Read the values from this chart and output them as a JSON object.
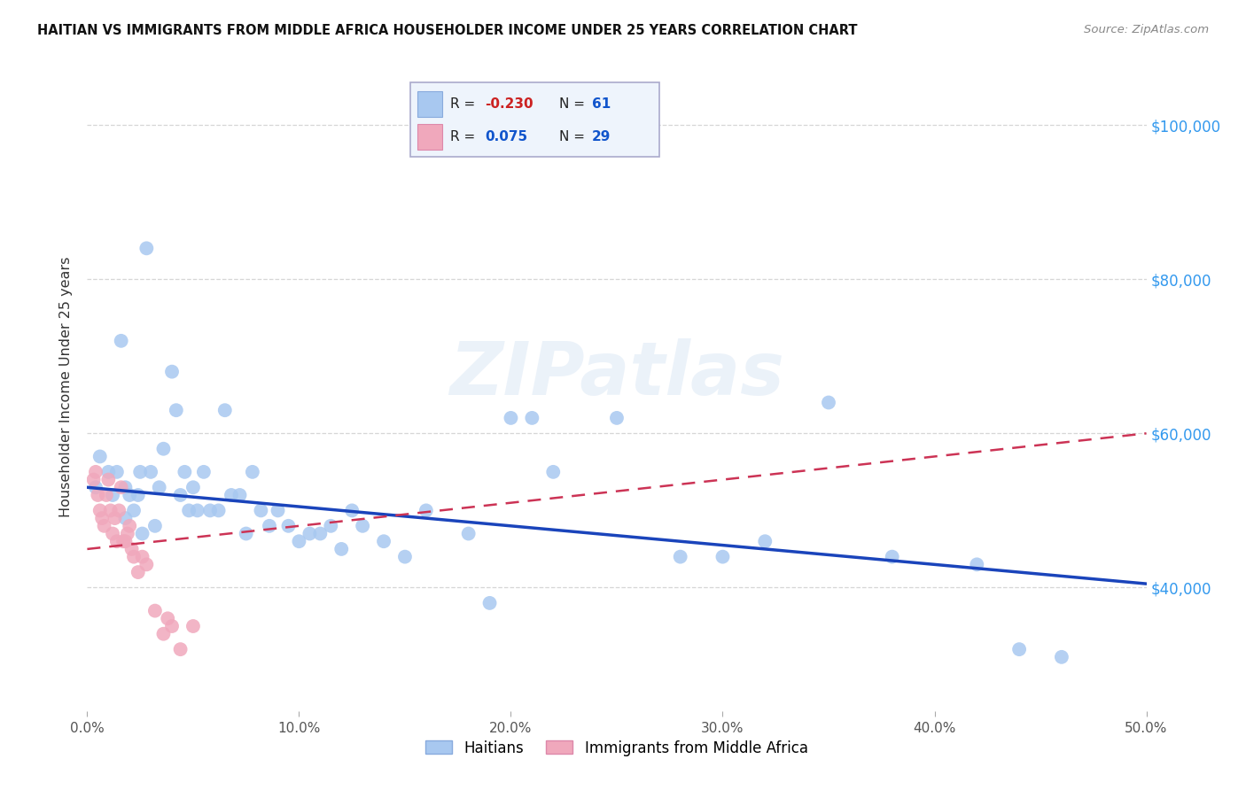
{
  "title": "HAITIAN VS IMMIGRANTS FROM MIDDLE AFRICA HOUSEHOLDER INCOME UNDER 25 YEARS CORRELATION CHART",
  "source": "Source: ZipAtlas.com",
  "ylabel": "Householder Income Under 25 years",
  "legend_labels": [
    "Haitians",
    "Immigrants from Middle Africa"
  ],
  "xlim": [
    0.0,
    0.5
  ],
  "ylim": [
    24000,
    108000
  ],
  "xtick_labels": [
    "0.0%",
    "10.0%",
    "20.0%",
    "30.0%",
    "40.0%",
    "50.0%"
  ],
  "xtick_vals": [
    0.0,
    0.1,
    0.2,
    0.3,
    0.4,
    0.5
  ],
  "ytick_vals": [
    40000,
    60000,
    80000,
    100000
  ],
  "ytick_labels": [
    "$40,000",
    "$60,000",
    "$80,000",
    "$100,000"
  ],
  "background_color": "#ffffff",
  "grid_color": "#cccccc",
  "blue_color": "#a8c8f0",
  "pink_color": "#f0a8bc",
  "line_blue_color": "#1a44bb",
  "line_pink_color": "#cc3355",
  "blue_points_x": [
    0.004,
    0.006,
    0.01,
    0.012,
    0.014,
    0.016,
    0.018,
    0.018,
    0.02,
    0.022,
    0.024,
    0.025,
    0.026,
    0.028,
    0.03,
    0.032,
    0.034,
    0.036,
    0.04,
    0.042,
    0.044,
    0.046,
    0.048,
    0.05,
    0.052,
    0.055,
    0.058,
    0.062,
    0.065,
    0.068,
    0.072,
    0.075,
    0.078,
    0.082,
    0.086,
    0.09,
    0.095,
    0.1,
    0.105,
    0.11,
    0.115,
    0.12,
    0.125,
    0.13,
    0.14,
    0.15,
    0.16,
    0.18,
    0.19,
    0.2,
    0.21,
    0.22,
    0.25,
    0.28,
    0.3,
    0.32,
    0.35,
    0.38,
    0.42,
    0.44,
    0.46
  ],
  "blue_points_y": [
    53000,
    57000,
    55000,
    52000,
    55000,
    72000,
    53000,
    49000,
    52000,
    50000,
    52000,
    55000,
    47000,
    84000,
    55000,
    48000,
    53000,
    58000,
    68000,
    63000,
    52000,
    55000,
    50000,
    53000,
    50000,
    55000,
    50000,
    50000,
    63000,
    52000,
    52000,
    47000,
    55000,
    50000,
    48000,
    50000,
    48000,
    46000,
    47000,
    47000,
    48000,
    45000,
    50000,
    48000,
    46000,
    44000,
    50000,
    47000,
    38000,
    62000,
    62000,
    55000,
    62000,
    44000,
    44000,
    46000,
    64000,
    44000,
    43000,
    32000,
    31000
  ],
  "pink_points_x": [
    0.003,
    0.004,
    0.005,
    0.006,
    0.007,
    0.008,
    0.009,
    0.01,
    0.011,
    0.012,
    0.013,
    0.014,
    0.015,
    0.016,
    0.017,
    0.018,
    0.019,
    0.02,
    0.021,
    0.022,
    0.024,
    0.026,
    0.028,
    0.032,
    0.036,
    0.038,
    0.04,
    0.044,
    0.05
  ],
  "pink_points_y": [
    54000,
    55000,
    52000,
    50000,
    49000,
    48000,
    52000,
    54000,
    50000,
    47000,
    49000,
    46000,
    50000,
    53000,
    46000,
    46000,
    47000,
    48000,
    45000,
    44000,
    42000,
    44000,
    43000,
    37000,
    34000,
    36000,
    35000,
    32000,
    35000
  ],
  "watermark_text": "ZIPatlas",
  "blue_line_x0": 0.0,
  "blue_line_x1": 0.5,
  "blue_line_y0": 53000,
  "blue_line_y1": 40500,
  "pink_line_x0": 0.0,
  "pink_line_x1": 0.5,
  "pink_line_y0": 45000,
  "pink_line_y1": 60000
}
